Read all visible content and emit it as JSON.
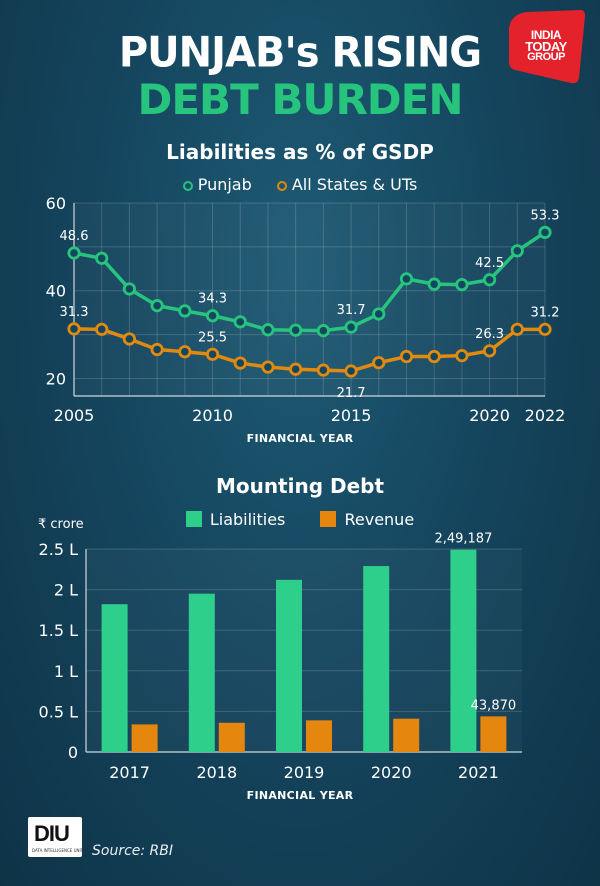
{
  "header": {
    "title_line1": "PUNJAB's RISING",
    "title_line2": "DEBT BURDEN",
    "logo": {
      "line1": "INDIA",
      "line2": "TODAY",
      "line3": "GROUP"
    }
  },
  "footer": {
    "diu_logo": "DIU",
    "diu_subtitle": "DATA INTELLIGENCE UNIT",
    "source": "Source: RBI"
  },
  "colors": {
    "punjab": "#27c47d",
    "states": "#e08a0f",
    "liabilities": "#2ecf8b",
    "revenue": "#e5860e"
  },
  "chart_data": [
    {
      "type": "line",
      "title": "Liabilities as % of GSDP",
      "xlabel": "FINANCIAL YEAR",
      "ylabel": "",
      "x": [
        2005,
        2006,
        2007,
        2008,
        2009,
        2010,
        2011,
        2012,
        2013,
        2014,
        2015,
        2016,
        2017,
        2018,
        2019,
        2020,
        2021,
        2022
      ],
      "x_ticks": [
        2005,
        2010,
        2015,
        2020,
        2022
      ],
      "y_ticks": [
        20,
        40,
        60
      ],
      "ylim": [
        16,
        60
      ],
      "grid": true,
      "series": [
        {
          "name": "Punjab",
          "values": [
            48.6,
            47.4,
            40.4,
            36.6,
            35.4,
            34.3,
            32.9,
            31.1,
            31.0,
            30.9,
            31.7,
            34.7,
            42.7,
            41.5,
            41.4,
            42.5,
            49.1,
            53.3
          ],
          "labels": {
            "2005": "48.6",
            "2010": "34.3",
            "2015": "31.7",
            "2020": "42.5",
            "2022": "53.3"
          }
        },
        {
          "name": "All States & UTs",
          "values": [
            31.3,
            31.2,
            29.0,
            26.6,
            26.1,
            25.5,
            23.5,
            22.6,
            22.1,
            21.9,
            21.7,
            23.6,
            25.0,
            25.0,
            25.2,
            26.3,
            31.2,
            31.2
          ],
          "labels": {
            "2005": "31.3",
            "2010": "25.5",
            "2015": "21.7",
            "2020": "26.3",
            "2022": "31.2"
          }
        }
      ]
    },
    {
      "type": "bar",
      "title": "Mounting Debt",
      "xlabel": "FINANCIAL YEAR",
      "ylabel": "₹ crore",
      "categories": [
        "2017",
        "2018",
        "2019",
        "2020",
        "2021"
      ],
      "y_ticks": [
        "0",
        "0.5 L",
        "1 L",
        "1.5 L",
        "2 L",
        "2.5 L"
      ],
      "ylim": [
        0,
        250000
      ],
      "grid": true,
      "series": [
        {
          "name": "Liabilities",
          "values": [
            182000,
            195000,
            212000,
            229000,
            249187
          ],
          "labels": {
            "2021": "2,49,187"
          }
        },
        {
          "name": "Revenue",
          "values": [
            34000,
            36000,
            39000,
            41000,
            43870
          ],
          "labels": {
            "2021": "43,870"
          }
        }
      ]
    }
  ]
}
